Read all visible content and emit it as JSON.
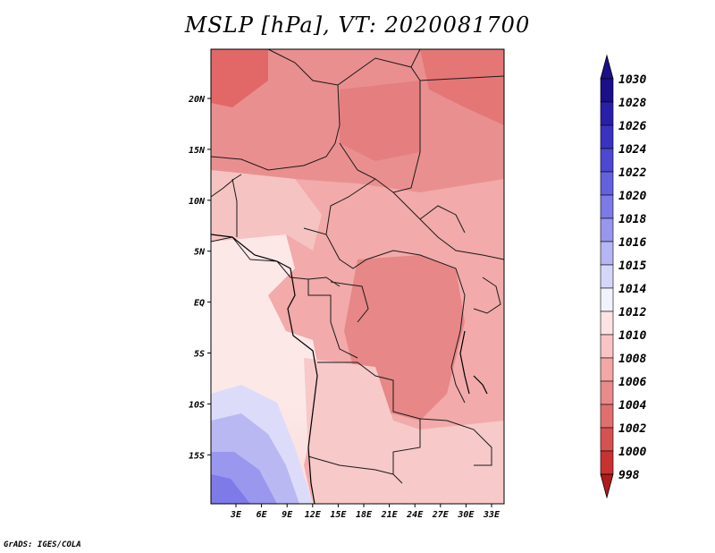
{
  "title": "MSLP [hPa], VT: 2020081700",
  "credit": "GrADS: IGES/COLA",
  "x_ticks": [
    "3E",
    "6E",
    "9E",
    "12E",
    "15E",
    "18E",
    "21E",
    "24E",
    "27E",
    "30E",
    "33E"
  ],
  "y_ticks": [
    "20N",
    "15N",
    "10N",
    "5N",
    "EQ",
    "5S",
    "10S",
    "15S"
  ],
  "colorbar": {
    "levels": [
      "1030",
      "1028",
      "1026",
      "1024",
      "1022",
      "1020",
      "1018",
      "1016",
      "1015",
      "1014",
      "1012",
      "1010",
      "1008",
      "1006",
      "1004",
      "1002",
      "1000",
      "998"
    ],
    "colors": [
      "#1c0f8a",
      "#2a1fa8",
      "#3a33c0",
      "#4d48d2",
      "#6361de",
      "#7c7ae6",
      "#9896ee",
      "#b7b6f4",
      "#d6d6fa",
      "#f2f2fd",
      "#fde3e3",
      "#f9c4c4",
      "#f3a7a7",
      "#e98b8b",
      "#e07070",
      "#d65151",
      "#c83232",
      "#b11a1a"
    ]
  },
  "colors": {
    "land_dark": "#e47272",
    "land_mid": "#ef9c9c",
    "land_light": "#f7c6c6",
    "ocean_light": "#fde8e8",
    "ocean_cool": "#c8c8f5",
    "ocean_cold": "#7e7ae8"
  }
}
